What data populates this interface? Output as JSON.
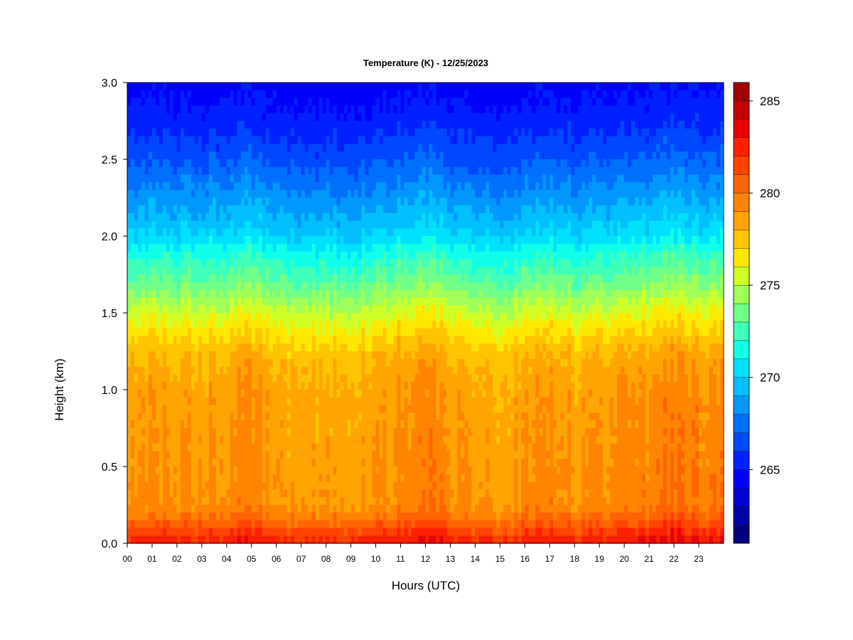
{
  "chart_data": {
    "type": "heatmap",
    "title": "Temperature (K) - 12/25/2023",
    "xlabel": "Hours (UTC)",
    "ylabel": "Height (km)",
    "x_ticks": [
      "00",
      "01",
      "02",
      "03",
      "04",
      "05",
      "06",
      "07",
      "08",
      "09",
      "10",
      "11",
      "12",
      "13",
      "14",
      "15",
      "16",
      "17",
      "18",
      "19",
      "20",
      "21",
      "22",
      "23"
    ],
    "xlim": [
      0,
      24
    ],
    "y_ticks": [
      "0.0",
      "0.5",
      "1.0",
      "1.5",
      "2.0",
      "2.5",
      "3.0"
    ],
    "ylim": [
      0,
      3.0
    ],
    "colorbar": {
      "min": 261,
      "max": 286,
      "step": 1,
      "ticks": [
        "265",
        "270",
        "275",
        "280",
        "285"
      ],
      "tick_values": [
        265,
        270,
        275,
        280,
        285
      ],
      "colors": [
        "#00007f",
        "#0000a8",
        "#0000d4",
        "#0000ff",
        "#0020ff",
        "#0048ff",
        "#0070ff",
        "#0098ff",
        "#00c0ff",
        "#00e0ff",
        "#10ffe8",
        "#40ffb8",
        "#70ff88",
        "#a0ff58",
        "#d0ff28",
        "#ffe800",
        "#ffc400",
        "#ffa400",
        "#ff8400",
        "#ff6400",
        "#ff4400",
        "#ff2000",
        "#e80000",
        "#c40000",
        "#a00000",
        "#800000"
      ]
    },
    "profile": {
      "heights_km": [
        0.0,
        0.05,
        0.1,
        0.15,
        0.25,
        0.5,
        0.8,
        1.0,
        1.2,
        1.3,
        1.4,
        1.5,
        1.7,
        1.9,
        2.0,
        2.2,
        2.5,
        2.8,
        3.0
      ],
      "temperature_k": [
        282.6,
        282.0,
        281.2,
        280.2,
        279.2,
        279.0,
        278.8,
        278.6,
        278.0,
        277.3,
        276.4,
        275.5,
        273.3,
        271.5,
        270.2,
        268.8,
        266.8,
        265.2,
        264.6
      ]
    },
    "time_anomaly": {
      "hours": [
        0,
        2,
        4,
        5,
        6,
        8,
        10,
        11,
        12,
        13,
        14,
        15,
        16,
        17,
        18,
        19,
        20,
        21,
        22,
        23,
        24
      ],
      "kelvin": [
        0.1,
        0.0,
        0.0,
        0.5,
        -0.3,
        -0.4,
        -0.2,
        0.4,
        0.7,
        0.2,
        -0.3,
        -0.5,
        0.0,
        0.5,
        -0.2,
        0.1,
        0.5,
        0.3,
        1.0,
        0.6,
        0.5
      ]
    },
    "grid": false
  }
}
